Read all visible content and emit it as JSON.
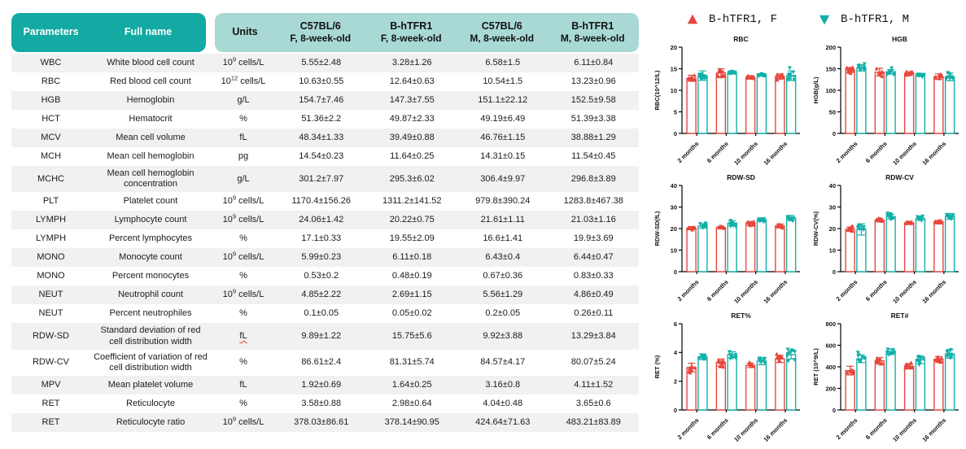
{
  "colors": {
    "header_dark": "#12aaa2",
    "header_light": "#a9d9d5",
    "row_stripe": "#f1f1f2",
    "female": "#e8463d",
    "male": "#10b0a8",
    "axis": "#000000"
  },
  "legend": {
    "items": [
      {
        "label": "B-hTFR1, F",
        "marker": "triangle-up",
        "color": "#e8463d"
      },
      {
        "label": "B-hTFR1, M",
        "marker": "triangle-down",
        "color": "#10b0a8"
      }
    ]
  },
  "table": {
    "header": {
      "parameters": "Parameters",
      "full_name": "Full name",
      "units": "Units",
      "groups": [
        {
          "line1": "C57BL/6",
          "line2": "F, 8-week-old"
        },
        {
          "line1": "B-hTFR1",
          "line2": "F, 8-week-old"
        },
        {
          "line1": "C57BL/6",
          "line2": "M, 8-week-old"
        },
        {
          "line1": "B-hTFR1",
          "line2": "M, 8-week-old"
        }
      ]
    },
    "rows": [
      {
        "param": "WBC",
        "full_name": "White blood cell count",
        "units": "10^9 cells/L",
        "values": [
          "5.55±2.48",
          "3.28±1.26",
          "6.58±1.5",
          "6.11±0.84"
        ]
      },
      {
        "param": "RBC",
        "full_name": "Red blood cell count",
        "units": "10^12 cells/L",
        "values": [
          "10.63±0.55",
          "12.64±0.63",
          "10.54±1.5",
          "13.23±0.96"
        ]
      },
      {
        "param": "HGB",
        "full_name": "Hemoglobin",
        "units": "g/L",
        "values": [
          "154.7±7.46",
          "147.3±7.55",
          "151.1±22.12",
          "152.5±9.58"
        ]
      },
      {
        "param": "HCT",
        "full_name": "Hematocrit",
        "units": "%",
        "values": [
          "51.36±2.2",
          "49.87±2.33",
          "49.19±6.49",
          "51.39±3.38"
        ]
      },
      {
        "param": "MCV",
        "full_name": "Mean cell volume",
        "units": "fL",
        "values": [
          "48.34±1.33",
          "39.49±0.88",
          "46.76±1.15",
          "38.88±1.29"
        ]
      },
      {
        "param": "MCH",
        "full_name": "Mean cell hemoglobin",
        "units": "pg",
        "values": [
          "14.54±0.23",
          "11.64±0.25",
          "14.31±0.15",
          "11.54±0.45"
        ]
      },
      {
        "param": "MCHC",
        "full_name": "Mean cell hemoglobin concentration",
        "units": "g/L",
        "values": [
          "301.2±7.97",
          "295.3±6.02",
          "306.4±9.97",
          "296.8±3.89"
        ]
      },
      {
        "param": "PLT",
        "full_name": "Platelet count",
        "units": "10^9 cells/L",
        "values": [
          "1170.4±156.26",
          "1311.2±141.52",
          "979.8±390.24",
          "1283.8±467.38"
        ]
      },
      {
        "param": "LYMPH",
        "full_name": "Lymphocyte count",
        "units": "10^9 cells/L",
        "values": [
          "24.06±1.42",
          "20.22±0.75",
          "21.61±1.11",
          "21.03±1.16"
        ]
      },
      {
        "param": "LYMPH",
        "full_name": "Percent lymphocytes",
        "units": "%",
        "values": [
          "17.1±0.33",
          "19.55±2.09",
          "16.6±1.41",
          "19.9±3.69"
        ]
      },
      {
        "param": "MONO",
        "full_name": "Monocyte count",
        "units": "10^9 cells/L",
        "values": [
          "5.99±0.23",
          "6.11±0.18",
          "6.43±0.4",
          "6.44±0.47"
        ]
      },
      {
        "param": "MONO",
        "full_name": "Percent monocytes",
        "units": "%",
        "values": [
          "0.53±0.2",
          "0.48±0.19",
          "0.67±0.36",
          "0.83±0.33"
        ]
      },
      {
        "param": "NEUT",
        "full_name": "Neutrophil count",
        "units": "10^9 cells/L",
        "values": [
          "4.85±2.22",
          "2.69±1.15",
          "5.56±1.29",
          "4.86±0.49"
        ]
      },
      {
        "param": "NEUT",
        "full_name": "Percent neutrophiles",
        "units": "%",
        "values": [
          "0.1±0.05",
          "0.05±0.02",
          "0.2±0.05",
          "0.26±0.11"
        ]
      },
      {
        "param": "RDW-SD",
        "full_name": "Standard deviation of red cell distribution width",
        "units": "fL",
        "squiggle": true,
        "values": [
          "9.89±1.22",
          "15.75±5.6",
          "9.92±3.88",
          "13.29±3.84"
        ]
      },
      {
        "param": "RDW-CV",
        "full_name": "Coefficient of variation of red cell distribution width",
        "units": "%",
        "values": [
          "86.61±2.4",
          "81.31±5.74",
          "84.57±4.17",
          "80.07±5.24"
        ]
      },
      {
        "param": "MPV",
        "full_name": "Mean platelet volume",
        "units": "fL",
        "values": [
          "1.92±0.69",
          "1.64±0.25",
          "3.16±0.8",
          "4.11±1.52"
        ]
      },
      {
        "param": "RET",
        "full_name": "Reticulocyte",
        "units": "%",
        "values": [
          "3.58±0.88",
          "2.98±0.64",
          "4.04±0.48",
          "3.65±0.6"
        ]
      },
      {
        "param": "RET",
        "full_name": "Reticulocyte ratio",
        "units": "10^9 cells/L",
        "values": [
          "378.03±86.61",
          "378.14±90.95",
          "424.64±71.63",
          "483.21±83.89"
        ]
      }
    ]
  },
  "chart_data": [
    {
      "type": "bar",
      "title": "RBC",
      "ylabel": "RBC(10^12/L)",
      "ylim": [
        0,
        20
      ],
      "yticks": [
        0,
        5,
        10,
        15,
        20
      ],
      "categories": [
        "2 months",
        "6 months",
        "10 months",
        "16 months"
      ],
      "series": [
        {
          "name": "B-hTFR1, F",
          "color": "#e8463d",
          "marker": "triangle-up",
          "values": [
            12.8,
            14.0,
            13.0,
            13.2
          ],
          "err": [
            0.7,
            1.0,
            0.4,
            0.6
          ]
        },
        {
          "name": "B-hTFR1, M",
          "color": "#10b0a8",
          "marker": "triangle-down",
          "values": [
            13.4,
            14.05,
            13.55,
            13.4
          ],
          "err": [
            1.1,
            0.25,
            0.3,
            1.1
          ]
        }
      ]
    },
    {
      "type": "bar",
      "title": "HGB",
      "ylabel": "HGB(g/L)",
      "ylim": [
        0,
        200
      ],
      "yticks": [
        0,
        50,
        100,
        150,
        200
      ],
      "categories": [
        "2 months",
        "6 months",
        "10 months",
        "16 months"
      ],
      "series": [
        {
          "name": "B-hTFR1, F",
          "color": "#e8463d",
          "marker": "triangle-up",
          "values": [
            147,
            142,
            139,
            132
          ],
          "err": [
            6,
            9,
            4,
            6
          ]
        },
        {
          "name": "B-hTFR1, M",
          "color": "#10b0a8",
          "marker": "triangle-down",
          "values": [
            152,
            143,
            135,
            131
          ],
          "err": [
            7,
            5,
            3,
            9
          ]
        }
      ]
    },
    {
      "type": "bar",
      "title": "RDW-SD",
      "ylabel": "RDW-SD(fL)",
      "ylim": [
        0,
        40
      ],
      "yticks": [
        0,
        10,
        20,
        30,
        40
      ],
      "categories": [
        "2 months",
        "6 months",
        "10 months",
        "16 months"
      ],
      "series": [
        {
          "name": "B-hTFR1, F",
          "color": "#e8463d",
          "marker": "triangle-up",
          "values": [
            20.2,
            20.5,
            22.4,
            21.3
          ],
          "err": [
            0.7,
            0.5,
            0.8,
            0.8
          ]
        },
        {
          "name": "B-hTFR1, M",
          "color": "#10b0a8",
          "marker": "triangle-down",
          "values": [
            21.2,
            22.4,
            24.0,
            24.9
          ],
          "err": [
            1.0,
            1.2,
            0.7,
            1.2
          ]
        }
      ]
    },
    {
      "type": "bar",
      "title": "RDW-CV",
      "ylabel": "RDW-CV(%)",
      "ylim": [
        0,
        40
      ],
      "yticks": [
        0,
        10,
        20,
        30,
        40
      ],
      "categories": [
        "2 months",
        "6 months",
        "10 months",
        "16 months"
      ],
      "series": [
        {
          "name": "B-hTFR1, F",
          "color": "#e8463d",
          "marker": "triangle-up",
          "values": [
            19.7,
            23.9,
            22.7,
            23.2
          ],
          "err": [
            1.0,
            0.8,
            0.7,
            0.6
          ]
        },
        {
          "name": "B-hTFR1, M",
          "color": "#10b0a8",
          "marker": "triangle-down",
          "values": [
            19.6,
            25.5,
            24.7,
            25.7
          ],
          "err": [
            2.6,
            1.0,
            0.8,
            1.3
          ]
        }
      ]
    },
    {
      "type": "bar",
      "title": "RET%",
      "ylabel": "RET (%)",
      "ylim": [
        0,
        6
      ],
      "yticks": [
        0,
        2,
        4,
        6
      ],
      "categories": [
        "2 months",
        "6 months",
        "10 months",
        "16 months"
      ],
      "series": [
        {
          "name": "B-hTFR1, F",
          "color": "#e8463d",
          "marker": "triangle-up",
          "values": [
            2.95,
            3.3,
            3.1,
            3.55
          ],
          "err": [
            0.3,
            0.25,
            0.15,
            0.25
          ]
        },
        {
          "name": "B-hTFR1, M",
          "color": "#10b0a8",
          "marker": "triangle-down",
          "values": [
            3.7,
            3.85,
            3.4,
            3.85
          ],
          "err": [
            0.2,
            0.2,
            0.25,
            0.3
          ]
        }
      ]
    },
    {
      "type": "bar",
      "title": "RET#",
      "ylabel": "RET (10^9/L)",
      "ylim": [
        0,
        800
      ],
      "yticks": [
        0,
        200,
        400,
        600,
        800
      ],
      "categories": [
        "2 months",
        "6 months",
        "10 months",
        "16 months"
      ],
      "series": [
        {
          "name": "B-hTFR1, F",
          "color": "#e8463d",
          "marker": "triangle-up",
          "values": [
            365,
            455,
            405,
            470
          ],
          "err": [
            40,
            30,
            25,
            25
          ]
        },
        {
          "name": "B-hTFR1, M",
          "color": "#10b0a8",
          "marker": "triangle-down",
          "values": [
            475,
            540,
            465,
            520
          ],
          "err": [
            35,
            25,
            35,
            40
          ]
        }
      ]
    }
  ]
}
